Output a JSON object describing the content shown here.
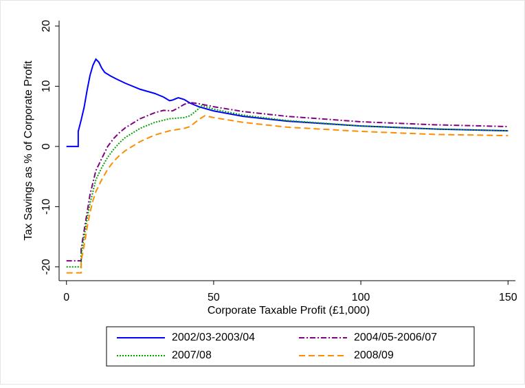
{
  "chart_data": {
    "type": "line",
    "x_label": "Corporate Taxable Profit (£1,000)",
    "y_label": "Tax Savings as % of Corporate Profit",
    "xlim": [
      -2.5,
      152.5
    ],
    "xticks": [
      0,
      50,
      100,
      150
    ],
    "ylim": [
      -22.3,
      20.9
    ],
    "yticks": [
      -20,
      -10,
      0,
      10,
      20
    ],
    "series": [
      {
        "name": "2002/03-2003/04",
        "color": "#0000ff",
        "dash": "solid",
        "x": [
          0,
          4,
          4,
          5,
          6,
          7,
          8,
          9,
          10,
          11,
          12,
          13,
          15,
          17,
          20,
          25,
          30,
          33,
          35,
          36,
          38,
          40,
          42,
          45,
          50,
          60,
          75,
          100,
          125,
          150
        ],
        "values": [
          0,
          0,
          2.5,
          4.4,
          6.5,
          9.3,
          11.8,
          13.5,
          14.5,
          14,
          13,
          12.3,
          11.7,
          11.2,
          10.5,
          9.5,
          8.8,
          8.2,
          7.6,
          7.7,
          8.1,
          7.8,
          7.2,
          6.6,
          5.9,
          5,
          4.2,
          3.4,
          2.9,
          2.6
        ]
      },
      {
        "name": "2004/05-2006/07",
        "color": "#800080",
        "dash": "dashdot",
        "x": [
          0,
          5,
          5,
          6,
          7,
          8,
          9,
          10,
          12,
          14,
          16,
          18,
          20,
          25,
          30,
          33,
          36,
          38,
          40,
          42,
          45,
          50,
          60,
          75,
          100,
          125,
          150
        ],
        "values": [
          -19,
          -19,
          -17,
          -14,
          -11,
          -8,
          -6,
          -4,
          -2,
          0,
          1.3,
          2.3,
          3.1,
          4.6,
          5.6,
          6.0,
          5.9,
          6.4,
          7.0,
          7.3,
          7.1,
          6.6,
          5.8,
          5,
          4.1,
          3.6,
          3.3
        ]
      },
      {
        "name": "2007/08",
        "color": "#00a000",
        "dash": "dotted",
        "x": [
          0,
          5,
          5,
          6,
          7,
          8,
          9,
          10,
          12,
          14,
          16,
          18,
          20,
          25,
          30,
          35,
          40,
          42,
          45,
          46,
          50,
          60,
          75,
          100,
          125,
          150
        ],
        "values": [
          -20,
          -20,
          -18,
          -15,
          -12,
          -9.5,
          -7.5,
          -5.5,
          -3.5,
          -1.8,
          -0.5,
          0.6,
          1.5,
          3,
          4,
          4.6,
          4.8,
          5.1,
          6.3,
          6.8,
          6.2,
          5.2,
          4.3,
          3.4,
          2.9,
          2.6
        ]
      },
      {
        "name": "2008/09",
        "color": "#ff8c00",
        "dash": "dashed",
        "x": [
          0,
          5,
          5,
          6,
          7,
          8,
          9,
          10,
          12,
          14,
          16,
          18,
          20,
          25,
          30,
          35,
          40,
          42,
          45,
          47,
          50,
          60,
          75,
          100,
          125,
          150
        ],
        "values": [
          -21,
          -21,
          -19,
          -16.5,
          -13.5,
          -11,
          -9,
          -7.5,
          -5.5,
          -3.8,
          -2.5,
          -1.5,
          -0.7,
          0.8,
          1.9,
          2.6,
          3,
          3.3,
          4.5,
          5.1,
          4.8,
          4,
          3.2,
          2.5,
          2.0,
          1.8
        ]
      }
    ]
  }
}
